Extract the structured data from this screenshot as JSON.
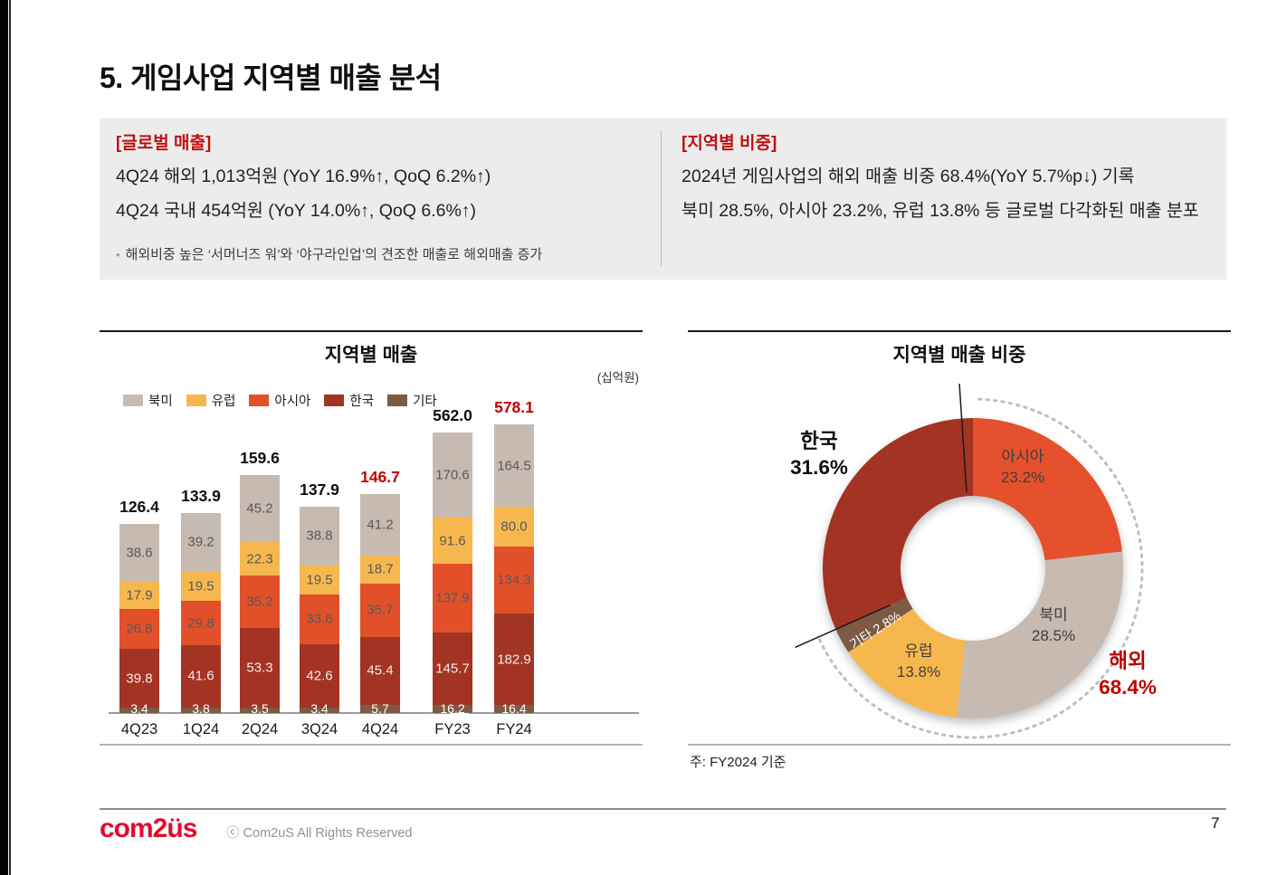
{
  "page": {
    "title": "5. 게임사업 지역별 매출 분석",
    "page_number": "7"
  },
  "highlight_box": {
    "global": {
      "heading": "[글로벌 매출]",
      "line1": "4Q24 해외 1,013억원 (YoY 16.9%↑, QoQ 6.2%↑)",
      "line2": "4Q24 국내 454억원 (YoY 14.0%↑, QoQ 6.6%↑)",
      "bullet": "해외비중 높은 ‘서머너즈 워’와 ‘야구라인업’의 견조한 매출로 해외매출 증가"
    },
    "regional": {
      "heading": "[지역별 비중]",
      "line1": "2024년 게임사업의 해외 매출 비중 68.4%(YoY 5.7%p↓) 기록",
      "line2": "북미 28.5%, 아시아 23.2%, 유럽 13.8% 등 글로벌 다각화된 매출 분포"
    }
  },
  "chart_data": [
    {
      "type": "bar",
      "stacked": true,
      "title": "지역별 매출",
      "unit_label": "(십억원)",
      "categories": [
        "4Q23",
        "1Q24",
        "2Q24",
        "3Q24",
        "4Q24",
        "FY23",
        "FY24"
      ],
      "series": [
        {
          "key": "north_america",
          "name": "북미",
          "values": [
            38.6,
            39.2,
            45.2,
            38.8,
            41.2,
            170.6,
            164.5
          ]
        },
        {
          "key": "europe",
          "name": "유럽",
          "values": [
            17.9,
            19.5,
            22.3,
            19.5,
            18.7,
            91.6,
            80.0
          ]
        },
        {
          "key": "asia",
          "name": "아시아",
          "values": [
            26.8,
            29.8,
            35.2,
            33.6,
            35.7,
            137.9,
            134.3
          ]
        },
        {
          "key": "korea",
          "name": "한국",
          "values": [
            39.8,
            41.6,
            53.3,
            42.6,
            45.4,
            145.7,
            182.9
          ]
        },
        {
          "key": "others",
          "name": "기타",
          "values": [
            3.4,
            3.8,
            3.5,
            3.4,
            5.7,
            16.2,
            16.4
          ]
        }
      ],
      "stack_order_bottom_to_top": [
        "others",
        "korea",
        "asia",
        "europe",
        "north_america"
      ],
      "colors": {
        "north_america": "#c7bab0",
        "europe": "#f6b84e",
        "asia": "#e2502a",
        "korea": "#a33423",
        "others": "#7c5a44"
      },
      "value_label_colors": {
        "north_america": "#595959",
        "europe": "#595959",
        "asia": "#595959",
        "korea": "#f5ebe7",
        "others": "#ffffff"
      },
      "totals": [
        126.4,
        133.9,
        159.6,
        137.9,
        146.7,
        562.0,
        578.1
      ],
      "total_emphasis": [
        "black",
        "black",
        "black",
        "black",
        "red",
        "black",
        "red"
      ],
      "emphasis_colors": {
        "black": "#0d0d0d",
        "red": "#c00000"
      },
      "legend_position": "top-left",
      "grid": false
    },
    {
      "type": "pie",
      "subtype": "donut",
      "title": "지역별 매출 비중",
      "slices": [
        {
          "key": "asia",
          "label": "아시아",
          "value": 23.2,
          "pct_text": "23.2%",
          "color": "#e5512c"
        },
        {
          "key": "north_america",
          "label": "북미",
          "value": 28.5,
          "pct_text": "28.5%",
          "color": "#c7bab0"
        },
        {
          "key": "europe",
          "label": "유럽",
          "value": 13.8,
          "pct_text": "13.8%",
          "color": "#f6b84e"
        },
        {
          "key": "others",
          "label": "기타",
          "value": 2.8,
          "pct_text": "2.8%",
          "color": "#7c5a44"
        },
        {
          "key": "korea",
          "label": "한국",
          "value": 31.6,
          "pct_text": "31.6%",
          "color": "#a33423"
        }
      ],
      "overseas": {
        "label": "해외",
        "pct_text": "68.4%",
        "value": 68.4
      },
      "note": "주: FY2024 기준"
    }
  ],
  "footer": {
    "logo_text": "com2üs",
    "copyright": "ⓒ Com2uS All Rights Reserved"
  }
}
